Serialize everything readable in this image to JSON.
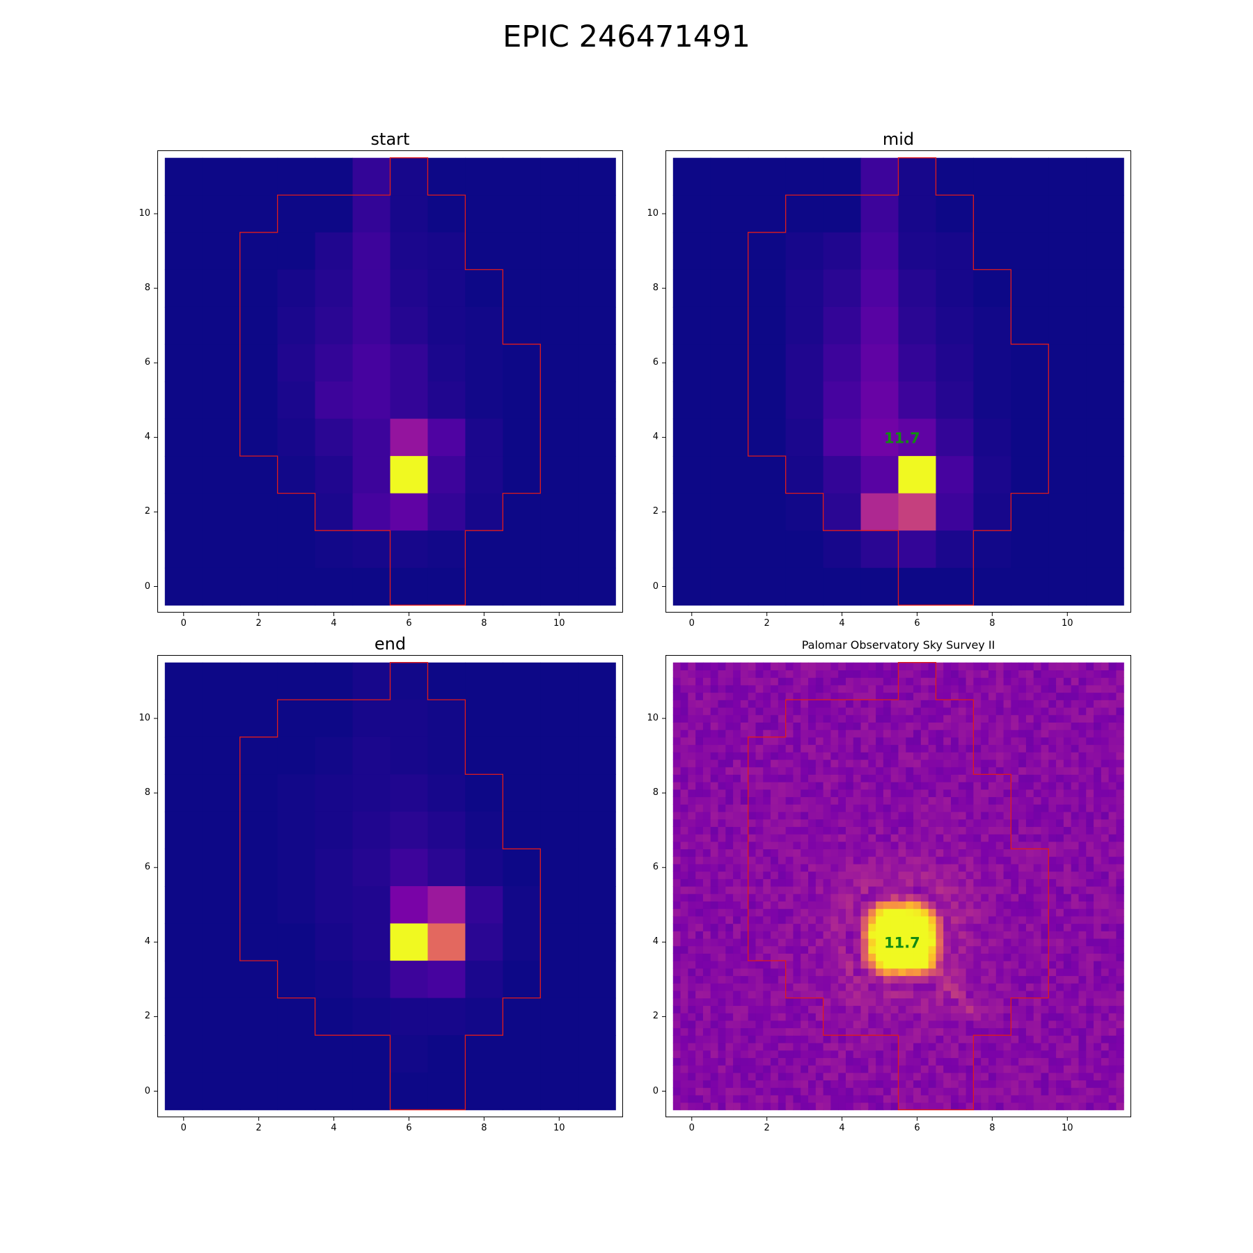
{
  "figure": {
    "title": "EPIC 246471491"
  },
  "chart_data": [
    {
      "type": "heatmap",
      "panel": "start",
      "title": "start",
      "xlim": [
        -0.5,
        11.5
      ],
      "ylim": [
        -0.5,
        11.5
      ],
      "xticks": [
        0,
        2,
        4,
        6,
        8,
        10
      ],
      "yticks": [
        0,
        2,
        4,
        6,
        8,
        10
      ],
      "colormap": "plasma",
      "rows_top_to_bottom": [
        [
          0.0,
          0.0,
          0.0,
          0.0,
          0.0,
          0.08,
          0.02,
          0.0,
          0.0,
          0.0,
          0.0,
          0.0
        ],
        [
          0.0,
          0.0,
          0.0,
          0.0,
          0.0,
          0.08,
          0.02,
          0.0,
          0.0,
          0.0,
          0.0,
          0.0
        ],
        [
          0.0,
          0.0,
          0.0,
          0.0,
          0.04,
          0.1,
          0.03,
          0.02,
          0.0,
          0.0,
          0.0,
          0.0
        ],
        [
          0.0,
          0.0,
          0.0,
          0.02,
          0.05,
          0.1,
          0.04,
          0.02,
          0.0,
          0.0,
          0.0,
          0.0
        ],
        [
          0.0,
          0.0,
          0.0,
          0.03,
          0.06,
          0.1,
          0.05,
          0.02,
          0.01,
          0.0,
          0.0,
          0.0
        ],
        [
          0.0,
          0.0,
          0.0,
          0.04,
          0.08,
          0.12,
          0.08,
          0.03,
          0.01,
          0.0,
          0.0,
          0.0
        ],
        [
          0.0,
          0.0,
          0.0,
          0.03,
          0.1,
          0.12,
          0.08,
          0.04,
          0.01,
          0.0,
          0.0,
          0.0
        ],
        [
          0.0,
          0.0,
          0.0,
          0.02,
          0.06,
          0.1,
          0.32,
          0.14,
          0.03,
          0.0,
          0.0,
          0.0
        ],
        [
          0.0,
          0.0,
          0.0,
          0.01,
          0.04,
          0.1,
          1.0,
          0.1,
          0.03,
          0.0,
          0.0,
          0.0
        ],
        [
          0.0,
          0.0,
          0.0,
          0.0,
          0.03,
          0.12,
          0.18,
          0.08,
          0.02,
          0.0,
          0.0,
          0.0
        ],
        [
          0.0,
          0.0,
          0.0,
          0.0,
          0.01,
          0.02,
          0.02,
          0.01,
          0.0,
          0.0,
          0.0,
          0.0
        ],
        [
          0.0,
          0.0,
          0.0,
          0.0,
          0.0,
          0.0,
          0.0,
          0.0,
          0.0,
          0.0,
          0.0,
          0.0
        ]
      ],
      "aperture": "red-outline"
    },
    {
      "type": "heatmap",
      "panel": "mid",
      "title": "mid",
      "xlim": [
        -0.5,
        11.5
      ],
      "ylim": [
        -0.5,
        11.5
      ],
      "xticks": [
        0,
        2,
        4,
        6,
        8,
        10
      ],
      "yticks": [
        0,
        2,
        4,
        6,
        8,
        10
      ],
      "colormap": "plasma",
      "annotation": {
        "text": "11.7",
        "x": 5.6,
        "y": 4.0,
        "color": "#138a13"
      },
      "rows_top_to_bottom": [
        [
          0.0,
          0.0,
          0.0,
          0.0,
          0.0,
          0.1,
          0.02,
          0.0,
          0.0,
          0.0,
          0.0,
          0.0
        ],
        [
          0.0,
          0.0,
          0.0,
          0.0,
          0.0,
          0.1,
          0.02,
          0.0,
          0.0,
          0.0,
          0.0,
          0.0
        ],
        [
          0.0,
          0.0,
          0.0,
          0.02,
          0.04,
          0.12,
          0.03,
          0.02,
          0.0,
          0.0,
          0.0,
          0.0
        ],
        [
          0.0,
          0.0,
          0.0,
          0.03,
          0.06,
          0.14,
          0.05,
          0.02,
          0.0,
          0.0,
          0.0,
          0.0
        ],
        [
          0.0,
          0.0,
          0.0,
          0.03,
          0.08,
          0.16,
          0.06,
          0.03,
          0.01,
          0.0,
          0.0,
          0.0
        ],
        [
          0.0,
          0.0,
          0.0,
          0.04,
          0.1,
          0.18,
          0.08,
          0.04,
          0.01,
          0.0,
          0.0,
          0.0
        ],
        [
          0.0,
          0.0,
          0.0,
          0.04,
          0.12,
          0.2,
          0.1,
          0.05,
          0.01,
          0.0,
          0.0,
          0.0
        ],
        [
          0.0,
          0.0,
          0.0,
          0.03,
          0.14,
          0.22,
          0.18,
          0.08,
          0.02,
          0.0,
          0.0,
          0.0
        ],
        [
          0.0,
          0.0,
          0.0,
          0.02,
          0.08,
          0.16,
          1.0,
          0.12,
          0.03,
          0.0,
          0.0,
          0.0
        ],
        [
          0.0,
          0.0,
          0.0,
          0.01,
          0.06,
          0.4,
          0.48,
          0.1,
          0.02,
          0.0,
          0.0,
          0.0
        ],
        [
          0.0,
          0.0,
          0.0,
          0.0,
          0.02,
          0.06,
          0.08,
          0.03,
          0.01,
          0.0,
          0.0,
          0.0
        ],
        [
          0.0,
          0.0,
          0.0,
          0.0,
          0.0,
          0.0,
          0.0,
          0.0,
          0.0,
          0.0,
          0.0,
          0.0
        ]
      ],
      "aperture": "red-outline"
    },
    {
      "type": "heatmap",
      "panel": "end",
      "title": "end",
      "xlim": [
        -0.5,
        11.5
      ],
      "ylim": [
        -0.5,
        11.5
      ],
      "xticks": [
        0,
        2,
        4,
        6,
        8,
        10
      ],
      "yticks": [
        0,
        2,
        4,
        6,
        8,
        10
      ],
      "colormap": "plasma",
      "rows_top_to_bottom": [
        [
          0.0,
          0.0,
          0.0,
          0.0,
          0.0,
          0.02,
          0.01,
          0.0,
          0.0,
          0.0,
          0.0,
          0.0
        ],
        [
          0.0,
          0.0,
          0.0,
          0.0,
          0.0,
          0.02,
          0.02,
          0.01,
          0.0,
          0.0,
          0.0,
          0.0
        ],
        [
          0.0,
          0.0,
          0.0,
          0.0,
          0.01,
          0.03,
          0.02,
          0.01,
          0.0,
          0.0,
          0.0,
          0.0
        ],
        [
          0.0,
          0.0,
          0.0,
          0.01,
          0.02,
          0.03,
          0.04,
          0.02,
          0.0,
          0.0,
          0.0,
          0.0
        ],
        [
          0.0,
          0.0,
          0.0,
          0.01,
          0.02,
          0.04,
          0.06,
          0.04,
          0.01,
          0.0,
          0.0,
          0.0
        ],
        [
          0.0,
          0.0,
          0.0,
          0.01,
          0.03,
          0.05,
          0.1,
          0.06,
          0.02,
          0.0,
          0.0,
          0.0
        ],
        [
          0.0,
          0.0,
          0.0,
          0.01,
          0.03,
          0.04,
          0.24,
          0.34,
          0.08,
          0.01,
          0.0,
          0.0
        ],
        [
          0.0,
          0.0,
          0.0,
          0.0,
          0.02,
          0.04,
          1.0,
          0.62,
          0.06,
          0.01,
          0.0,
          0.0
        ],
        [
          0.0,
          0.0,
          0.0,
          0.0,
          0.01,
          0.03,
          0.1,
          0.12,
          0.03,
          0.0,
          0.0,
          0.0
        ],
        [
          0.0,
          0.0,
          0.0,
          0.0,
          0.0,
          0.01,
          0.02,
          0.02,
          0.01,
          0.0,
          0.0,
          0.0
        ],
        [
          0.0,
          0.0,
          0.0,
          0.0,
          0.0,
          0.0,
          0.01,
          0.0,
          0.0,
          0.0,
          0.0,
          0.0
        ],
        [
          0.0,
          0.0,
          0.0,
          0.0,
          0.0,
          0.0,
          0.0,
          0.0,
          0.0,
          0.0,
          0.0,
          0.0
        ]
      ],
      "aperture": "red-outline"
    },
    {
      "type": "heatmap",
      "panel": "survey",
      "title": "Palomar Observatory Sky Survey II",
      "xlim": [
        -0.5,
        11.5
      ],
      "ylim": [
        -0.5,
        11.5
      ],
      "xticks": [
        0,
        2,
        4,
        6,
        8,
        10
      ],
      "yticks": [
        0,
        2,
        4,
        6,
        8,
        10
      ],
      "colormap": "plasma",
      "annotation": {
        "text": "11.7",
        "x": 5.6,
        "y": 4.0,
        "color": "#138a13"
      },
      "source": {
        "center": [
          5.6,
          4.1
        ],
        "halfwidth": 1.05,
        "background": 0.28
      },
      "aperture": "red-outline"
    }
  ],
  "aperture_polygon": [
    [
      5.5,
      -0.5
    ],
    [
      7.5,
      -0.5
    ],
    [
      7.5,
      1.5
    ],
    [
      8.5,
      1.5
    ],
    [
      8.5,
      2.5
    ],
    [
      9.5,
      2.5
    ],
    [
      9.5,
      6.5
    ],
    [
      8.5,
      6.5
    ],
    [
      8.5,
      8.5
    ],
    [
      7.5,
      8.5
    ],
    [
      7.5,
      10.5
    ],
    [
      6.5,
      10.5
    ],
    [
      6.5,
      11.5
    ],
    [
      5.5,
      11.5
    ],
    [
      5.5,
      10.5
    ],
    [
      2.5,
      10.5
    ],
    [
      2.5,
      9.5
    ],
    [
      1.5,
      9.5
    ],
    [
      1.5,
      3.5
    ],
    [
      2.5,
      3.5
    ],
    [
      2.5,
      2.5
    ],
    [
      3.5,
      2.5
    ],
    [
      3.5,
      1.5
    ],
    [
      5.5,
      1.5
    ]
  ],
  "colors": {
    "aperture": "#e01b1b",
    "annotation": "#138a13"
  }
}
